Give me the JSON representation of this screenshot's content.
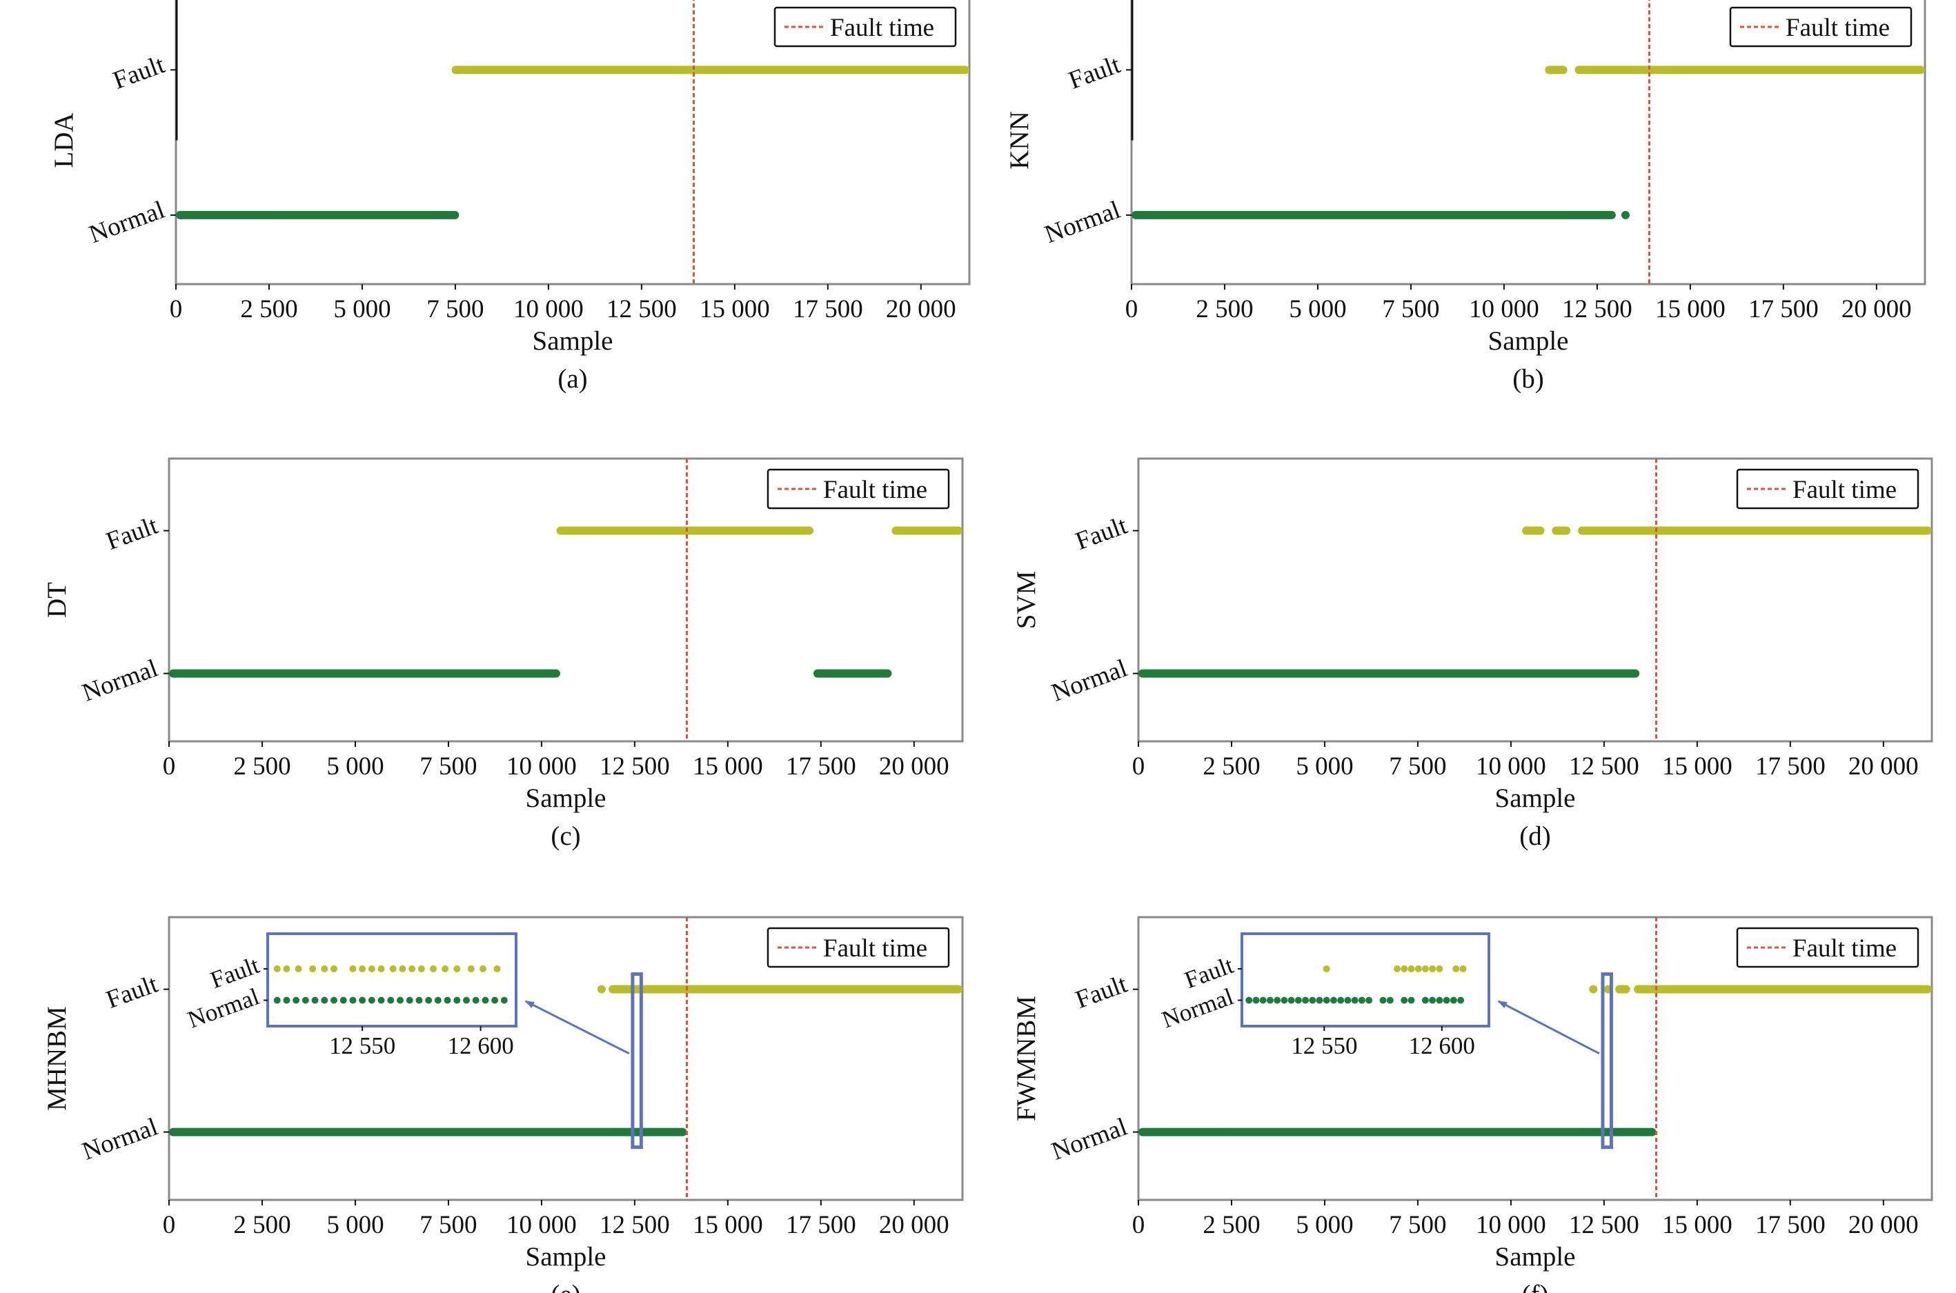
{
  "colors": {
    "normal": "#1f7a3c",
    "fault": "#b9bd2a",
    "fault_line": "#e0503c",
    "frame": "#8a8a8a",
    "inset_frame": "#5f73b8"
  },
  "chart_data": [
    {
      "type": "scatter",
      "panel_label": "(a)",
      "ylabel": "LDA",
      "xlabel": "Sample",
      "categories": [
        "Normal",
        "Fault"
      ],
      "xlim": [
        0,
        21300
      ],
      "xticks": [
        0,
        2500,
        5000,
        7500,
        10000,
        12500,
        15000,
        17500,
        20000
      ],
      "xtick_labels": [
        "0",
        "2 500",
        "5 000",
        "7 500",
        "10 000",
        "12 500",
        "15 000",
        "17 500",
        "20 000"
      ],
      "fault_time": 13900,
      "legend": {
        "label": "Fault time",
        "position": "top-right"
      },
      "series": [
        {
          "class": "Normal",
          "segments": [
            [
              0,
              7600
            ]
          ]
        },
        {
          "class": "Fault",
          "segments": [
            [
              7400,
              21300
            ]
          ]
        }
      ]
    },
    {
      "type": "scatter",
      "panel_label": "(b)",
      "ylabel": "KNN",
      "xlabel": "Sample",
      "categories": [
        "Normal",
        "Fault"
      ],
      "xlim": [
        0,
        21300
      ],
      "xticks": [
        0,
        2500,
        5000,
        7500,
        10000,
        12500,
        15000,
        17500,
        20000
      ],
      "xtick_labels": [
        "0",
        "2 500",
        "5 000",
        "7 500",
        "10 000",
        "12 500",
        "15 000",
        "17 500",
        "20 000"
      ],
      "fault_time": 13900,
      "legend": {
        "label": "Fault time",
        "position": "top-right"
      },
      "series": [
        {
          "class": "Normal",
          "segments": [
            [
              0,
              13000
            ],
            [
              13150,
              13350
            ]
          ]
        },
        {
          "class": "Fault",
          "segments": [
            [
              11100,
              11700
            ],
            [
              11900,
              21300
            ]
          ]
        }
      ]
    },
    {
      "type": "scatter",
      "panel_label": "(c)",
      "ylabel": "DT",
      "xlabel": "Sample",
      "categories": [
        "Normal",
        "Fault"
      ],
      "xlim": [
        0,
        21300
      ],
      "xticks": [
        0,
        2500,
        5000,
        7500,
        10000,
        12500,
        15000,
        17500,
        20000
      ],
      "xtick_labels": [
        "0",
        "2 500",
        "5 000",
        "7 500",
        "10 000",
        "12 500",
        "15 000",
        "17 500",
        "20 000"
      ],
      "fault_time": 13900,
      "legend": {
        "label": "Fault time",
        "position": "top-right"
      },
      "series": [
        {
          "class": "Normal",
          "segments": [
            [
              0,
              10500
            ],
            [
              17300,
              19400
            ]
          ]
        },
        {
          "class": "Fault",
          "segments": [
            [
              10400,
              17300
            ],
            [
              19400,
              21300
            ]
          ]
        }
      ]
    },
    {
      "type": "scatter",
      "panel_label": "(d)",
      "ylabel": "SVM",
      "xlabel": "Sample",
      "categories": [
        "Normal",
        "Fault"
      ],
      "xlim": [
        0,
        21300
      ],
      "xticks": [
        0,
        2500,
        5000,
        7500,
        10000,
        12500,
        15000,
        17500,
        20000
      ],
      "xtick_labels": [
        "0",
        "2 500",
        "5 000",
        "7 500",
        "10 000",
        "12 500",
        "15 000",
        "17 500",
        "20 000"
      ],
      "fault_time": 13900,
      "legend": {
        "label": "Fault time",
        "position": "top-right"
      },
      "series": [
        {
          "class": "Normal",
          "segments": [
            [
              0,
              13450
            ]
          ]
        },
        {
          "class": "Fault",
          "segments": [
            [
              10300,
              10900
            ],
            [
              11100,
              11600
            ],
            [
              11800,
              21300
            ]
          ]
        }
      ]
    },
    {
      "type": "scatter",
      "panel_label": "(e)",
      "ylabel": "MHNBM",
      "xlabel": "Sample",
      "categories": [
        "Normal",
        "Fault"
      ],
      "xlim": [
        0,
        21300
      ],
      "xticks": [
        0,
        2500,
        5000,
        7500,
        10000,
        12500,
        15000,
        17500,
        20000
      ],
      "xtick_labels": [
        "0",
        "2 500",
        "5 000",
        "7 500",
        "10 000",
        "12 500",
        "15 000",
        "17 500",
        "20 000"
      ],
      "fault_time": 13900,
      "legend": {
        "label": "Fault time",
        "position": "top-right"
      },
      "series": [
        {
          "class": "Normal",
          "segments": [
            [
              0,
              13900
            ]
          ]
        },
        {
          "class": "Fault",
          "segments": [
            [
              11500,
              11700
            ],
            [
              11800,
              21300
            ]
          ]
        }
      ],
      "highlight": [
        12500,
        12620
      ],
      "inset": {
        "xlim": [
          12510,
          12615
        ],
        "xticks": [
          12550,
          12600
        ],
        "xtick_labels": [
          "12 550",
          "12 600"
        ],
        "categories": [
          "Normal",
          "Fault"
        ],
        "normal_points": [
          12514,
          12518,
          12522,
          12526,
          12530,
          12534,
          12538,
          12542,
          12546,
          12550,
          12554,
          12558,
          12562,
          12566,
          12570,
          12574,
          12578,
          12582,
          12586,
          12590,
          12594,
          12598,
          12602,
          12606,
          12610
        ],
        "fault_points": [
          12514,
          12518,
          12523,
          12529,
          12534,
          12538,
          12546,
          12550,
          12554,
          12558,
          12563,
          12567,
          12571,
          12575,
          12580,
          12585,
          12590,
          12596,
          12601,
          12607
        ]
      }
    },
    {
      "type": "scatter",
      "panel_label": "(f)",
      "ylabel": "FWMNBM",
      "xlabel": "Sample",
      "categories": [
        "Normal",
        "Fault"
      ],
      "xlim": [
        0,
        21300
      ],
      "xticks": [
        0,
        2500,
        5000,
        7500,
        10000,
        12500,
        15000,
        17500,
        20000
      ],
      "xtick_labels": [
        "0",
        "2 500",
        "5 000",
        "7 500",
        "10 000",
        "12 500",
        "15 000",
        "17 500",
        "20 000"
      ],
      "fault_time": 13900,
      "legend": {
        "label": "Fault time",
        "position": "top-right"
      },
      "series": [
        {
          "class": "Normal",
          "segments": [
            [
              0,
              13900
            ]
          ]
        },
        {
          "class": "Fault",
          "segments": [
            [
              12100,
              12300
            ],
            [
              12500,
              12700
            ],
            [
              12800,
              13200
            ],
            [
              13300,
              21300
            ]
          ]
        }
      ],
      "highlight": [
        12520,
        12640
      ],
      "inset": {
        "xlim": [
          12515,
          12620
        ],
        "xticks": [
          12550,
          12600
        ],
        "xtick_labels": [
          "12 550",
          "12 600"
        ],
        "categories": [
          "Normal",
          "Fault"
        ],
        "normal_points": [
          12518,
          12521,
          12524,
          12527,
          12530,
          12533,
          12536,
          12539,
          12542,
          12545,
          12548,
          12551,
          12554,
          12557,
          12560,
          12563,
          12566,
          12569,
          12575,
          12578,
          12584,
          12587,
          12593,
          12596,
          12599,
          12602,
          12605,
          12608
        ],
        "fault_points": [
          12551,
          12581,
          12584,
          12587,
          12590,
          12593,
          12596,
          12599,
          12606,
          12609
        ]
      }
    }
  ]
}
